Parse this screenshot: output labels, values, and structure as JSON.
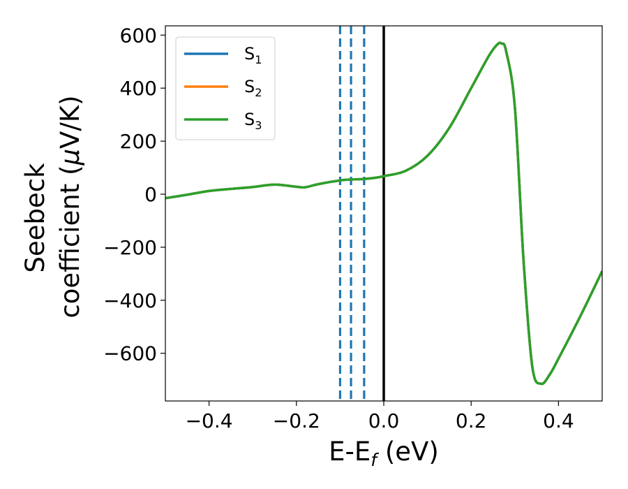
{
  "chart_data": {
    "type": "line",
    "xlabel": "E-E",
    "xlabel_sub": "f",
    "xlabel_unit": " (eV)",
    "ylabel_line1": "Seebeck",
    "ylabel_line2": "coefficient  (",
    "ylabel_mu": "μ",
    "ylabel_unit": "V/K)",
    "xlim": [
      -0.5,
      0.5
    ],
    "ylim": [
      -780,
      635
    ],
    "x_ticks": [
      -0.4,
      -0.2,
      0.0,
      0.2,
      0.4
    ],
    "x_tick_labels": [
      "−0.4",
      "−0.2",
      "0.0",
      "0.2",
      "0.4"
    ],
    "y_ticks": [
      600,
      400,
      200,
      0,
      -200,
      -400,
      -600
    ],
    "y_tick_labels": [
      "600",
      "400",
      "200",
      "0",
      "−200",
      "−400",
      "−600"
    ],
    "grid": false,
    "legend_position": "top-left",
    "series": [
      {
        "name": "S",
        "subscript": "1",
        "color": "#1f77b4",
        "x": [
          -0.5,
          -0.45,
          -0.4,
          -0.35,
          -0.3,
          -0.25,
          -0.2,
          -0.18,
          -0.15,
          -0.1,
          -0.08,
          -0.05,
          -0.02,
          0.0,
          0.05,
          0.1,
          0.15,
          0.2,
          0.24,
          0.26,
          0.27,
          0.28,
          0.3,
          0.32,
          0.34,
          0.36,
          0.38,
          0.4,
          0.45,
          0.5
        ],
        "y": [
          -15,
          -2,
          12,
          20,
          27,
          36,
          28,
          26,
          38,
          52,
          55,
          57,
          62,
          68,
          88,
          145,
          250,
          400,
          520,
          565,
          568,
          540,
          330,
          -250,
          -650,
          -715,
          -680,
          -620,
          -460,
          -290
        ]
      },
      {
        "name": "S",
        "subscript": "2",
        "color": "#ff7f0e",
        "x": [
          -0.5,
          -0.45,
          -0.4,
          -0.35,
          -0.3,
          -0.25,
          -0.2,
          -0.18,
          -0.15,
          -0.1,
          -0.08,
          -0.05,
          -0.02,
          0.0,
          0.05,
          0.1,
          0.15,
          0.2,
          0.24,
          0.26,
          0.27,
          0.28,
          0.3,
          0.32,
          0.34,
          0.36,
          0.38,
          0.4,
          0.45,
          0.5
        ],
        "y": [
          -15,
          -2,
          12,
          20,
          27,
          36,
          28,
          26,
          38,
          52,
          55,
          57,
          62,
          68,
          88,
          145,
          250,
          400,
          520,
          565,
          568,
          540,
          330,
          -250,
          -650,
          -715,
          -680,
          -620,
          -460,
          -290
        ]
      },
      {
        "name": "S",
        "subscript": "3",
        "color": "#2ca02c",
        "x": [
          -0.5,
          -0.45,
          -0.4,
          -0.35,
          -0.3,
          -0.25,
          -0.2,
          -0.18,
          -0.15,
          -0.1,
          -0.08,
          -0.05,
          -0.02,
          0.0,
          0.05,
          0.1,
          0.15,
          0.2,
          0.24,
          0.26,
          0.27,
          0.28,
          0.3,
          0.32,
          0.34,
          0.36,
          0.38,
          0.4,
          0.45,
          0.5
        ],
        "y": [
          -15,
          -2,
          12,
          20,
          27,
          36,
          28,
          26,
          38,
          52,
          55,
          57,
          62,
          68,
          88,
          145,
          250,
          400,
          520,
          565,
          568,
          540,
          330,
          -250,
          -650,
          -715,
          -680,
          -620,
          -460,
          -290
        ]
      }
    ],
    "vertical_lines": [
      {
        "x": -0.1,
        "style": "dashed",
        "color": "#1f77b4"
      },
      {
        "x": -0.075,
        "style": "dashed",
        "color": "#1f77b4"
      },
      {
        "x": -0.045,
        "style": "dashed",
        "color": "#1f77b4"
      },
      {
        "x": 0.0,
        "style": "solid",
        "color": "#000000"
      }
    ]
  }
}
